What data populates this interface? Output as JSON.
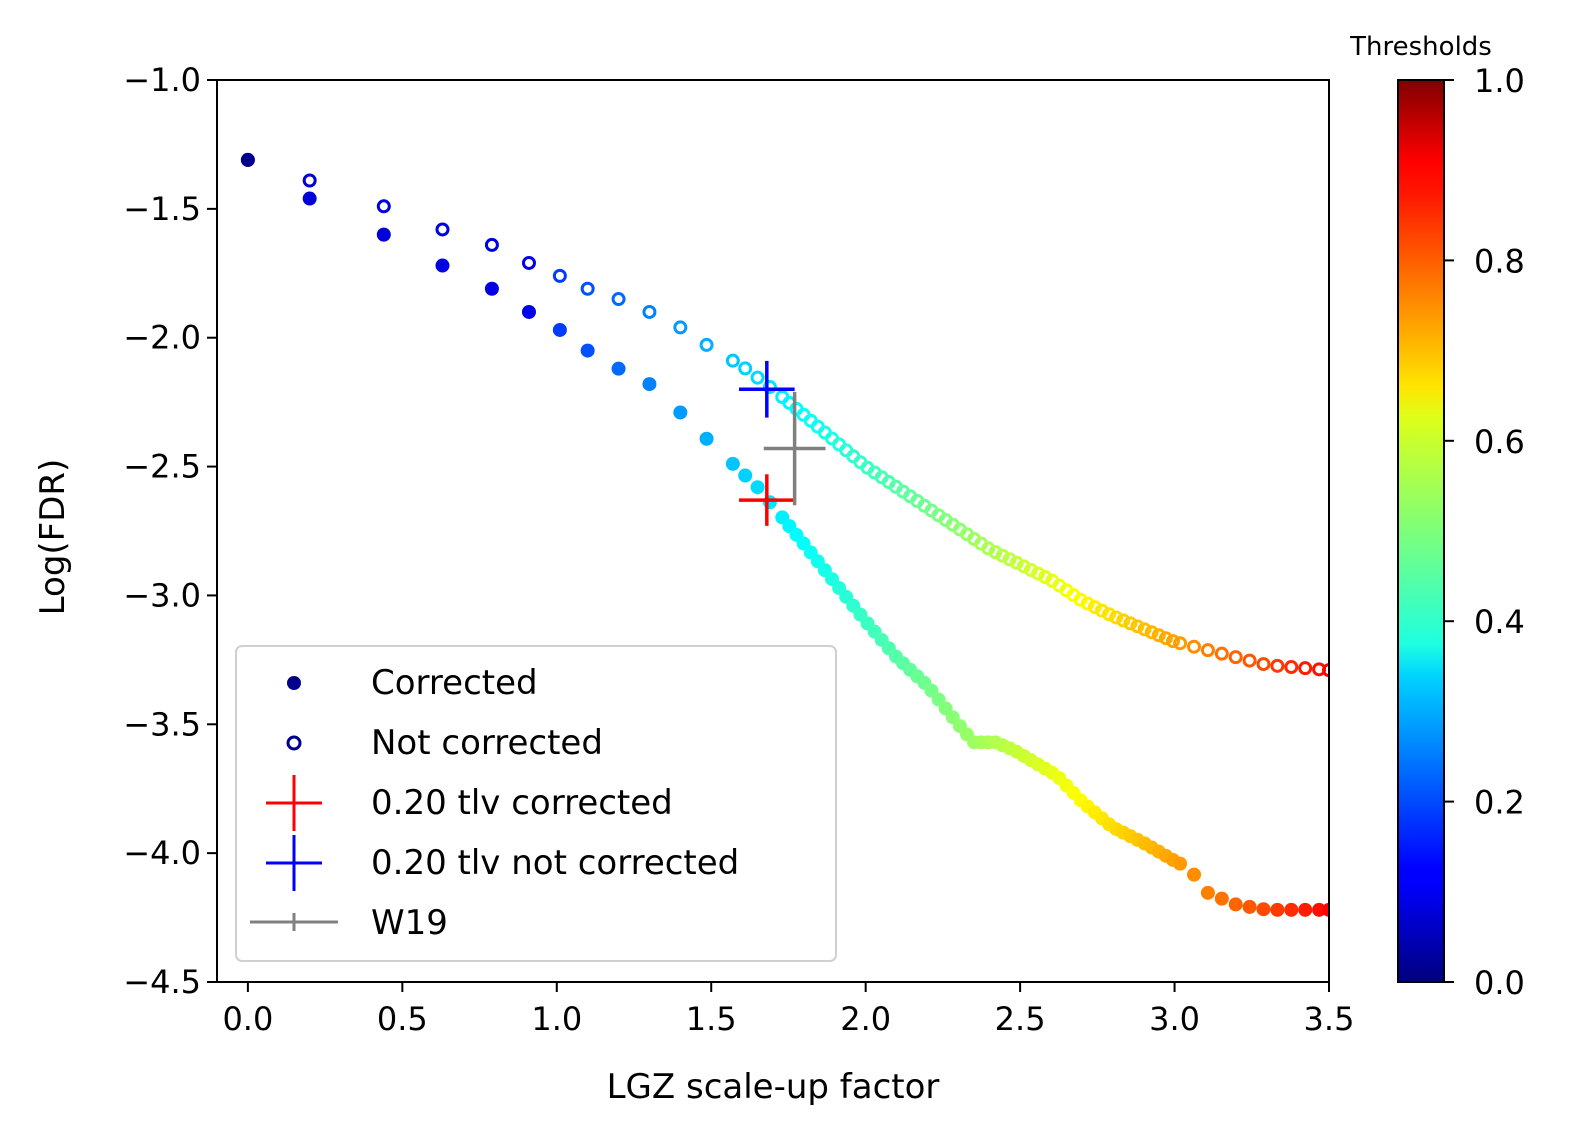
{
  "chart_data": {
    "type": "scatter",
    "title": "",
    "xlabel": "LGZ scale-up factor",
    "ylabel": "Log(FDR)",
    "xlim": [
      -0.1,
      3.5
    ],
    "ylim": [
      -4.5,
      -1.0
    ],
    "xticks": [
      "0.0",
      "0.5",
      "1.0",
      "1.5",
      "2.0",
      "2.5",
      "3.0",
      "3.5"
    ],
    "yticks": [
      "-1.0",
      "-1.5",
      "-2.0",
      "-2.5",
      "-3.0",
      "-3.5",
      "-4.0",
      "-4.5"
    ],
    "xtick_values": [
      0.0,
      0.5,
      1.0,
      1.5,
      2.0,
      2.5,
      3.0,
      3.5
    ],
    "ytick_values": [
      -1.0,
      -1.5,
      -2.0,
      -2.5,
      -3.0,
      -3.5,
      -4.0,
      -4.5
    ],
    "grid": false,
    "legend_position": "lower-left",
    "colormap": "jet",
    "colorbar": {
      "label": "Thresholds",
      "range": [
        0.0,
        1.0
      ],
      "ticks": [
        "0.0",
        "0.2",
        "0.4",
        "0.6",
        "0.8",
        "1.0"
      ],
      "tick_values": [
        0.0,
        0.2,
        0.4,
        0.6,
        0.8,
        1.0
      ]
    },
    "series": [
      {
        "name": "Corrected",
        "marker": "filled-circle",
        "legend_color": "#00008b",
        "threshold_range": [
          0.0,
          0.87
        ],
        "anchors": [
          [
            0.0,
            -1.31
          ],
          [
            0.2,
            -1.46
          ],
          [
            0.44,
            -1.6
          ],
          [
            0.63,
            -1.72
          ],
          [
            0.79,
            -1.81
          ],
          [
            0.91,
            -1.9
          ],
          [
            1.01,
            -1.97
          ],
          [
            1.1,
            -2.05
          ],
          [
            1.2,
            -2.12
          ],
          [
            1.3,
            -2.18
          ],
          [
            1.4,
            -2.29
          ],
          [
            1.5,
            -2.41
          ],
          [
            1.65,
            -2.58
          ],
          [
            1.8,
            -2.8
          ],
          [
            1.9,
            -2.95
          ],
          [
            2.0,
            -3.1
          ],
          [
            2.1,
            -3.24
          ],
          [
            2.2,
            -3.35
          ],
          [
            2.3,
            -3.5
          ],
          [
            2.35,
            -3.57
          ],
          [
            2.42,
            -3.57
          ],
          [
            2.48,
            -3.6
          ],
          [
            2.55,
            -3.65
          ],
          [
            2.62,
            -3.7
          ],
          [
            2.7,
            -3.8
          ],
          [
            2.8,
            -3.9
          ],
          [
            2.9,
            -3.96
          ],
          [
            3.0,
            -4.03
          ],
          [
            3.05,
            -4.06
          ],
          [
            3.1,
            -4.15
          ],
          [
            3.2,
            -4.2
          ],
          [
            3.3,
            -4.22
          ],
          [
            3.5,
            -4.22
          ]
        ]
      },
      {
        "name": "Not corrected",
        "marker": "open-circle",
        "legend_color": "#00008b",
        "threshold_range": [
          0.0,
          0.87
        ],
        "anchors": [
          [
            0.0,
            -1.31
          ],
          [
            0.2,
            -1.39
          ],
          [
            0.44,
            -1.49
          ],
          [
            0.63,
            -1.58
          ],
          [
            0.79,
            -1.64
          ],
          [
            0.91,
            -1.71
          ],
          [
            1.01,
            -1.76
          ],
          [
            1.1,
            -1.81
          ],
          [
            1.2,
            -1.85
          ],
          [
            1.3,
            -1.9
          ],
          [
            1.4,
            -1.96
          ],
          [
            1.5,
            -2.04
          ],
          [
            1.6,
            -2.11
          ],
          [
            1.7,
            -2.2
          ],
          [
            1.8,
            -2.3
          ],
          [
            1.9,
            -2.4
          ],
          [
            2.0,
            -2.5
          ],
          [
            2.1,
            -2.58
          ],
          [
            2.2,
            -2.66
          ],
          [
            2.3,
            -2.74
          ],
          [
            2.4,
            -2.82
          ],
          [
            2.5,
            -2.88
          ],
          [
            2.6,
            -2.94
          ],
          [
            2.7,
            -3.02
          ],
          [
            2.8,
            -3.08
          ],
          [
            2.9,
            -3.13
          ],
          [
            3.0,
            -3.18
          ],
          [
            3.1,
            -3.21
          ],
          [
            3.2,
            -3.24
          ],
          [
            3.3,
            -3.27
          ],
          [
            3.5,
            -3.29
          ]
        ]
      },
      {
        "name": "0.20 tlv corrected",
        "marker": "errorbar",
        "color": "#ff0000",
        "x": 1.68,
        "y": -2.63,
        "xerr": 0.09,
        "yerr": 0.1
      },
      {
        "name": "0.20 tlv not corrected",
        "marker": "errorbar",
        "color": "#0000ff",
        "x": 1.68,
        "y": -2.2,
        "xerr": 0.09,
        "yerr": 0.11
      },
      {
        "name": "W19",
        "marker": "errorbar",
        "color": "#808080",
        "x": 1.77,
        "y": -2.43,
        "xerr": 0.1,
        "yerr": 0.22
      }
    ]
  }
}
